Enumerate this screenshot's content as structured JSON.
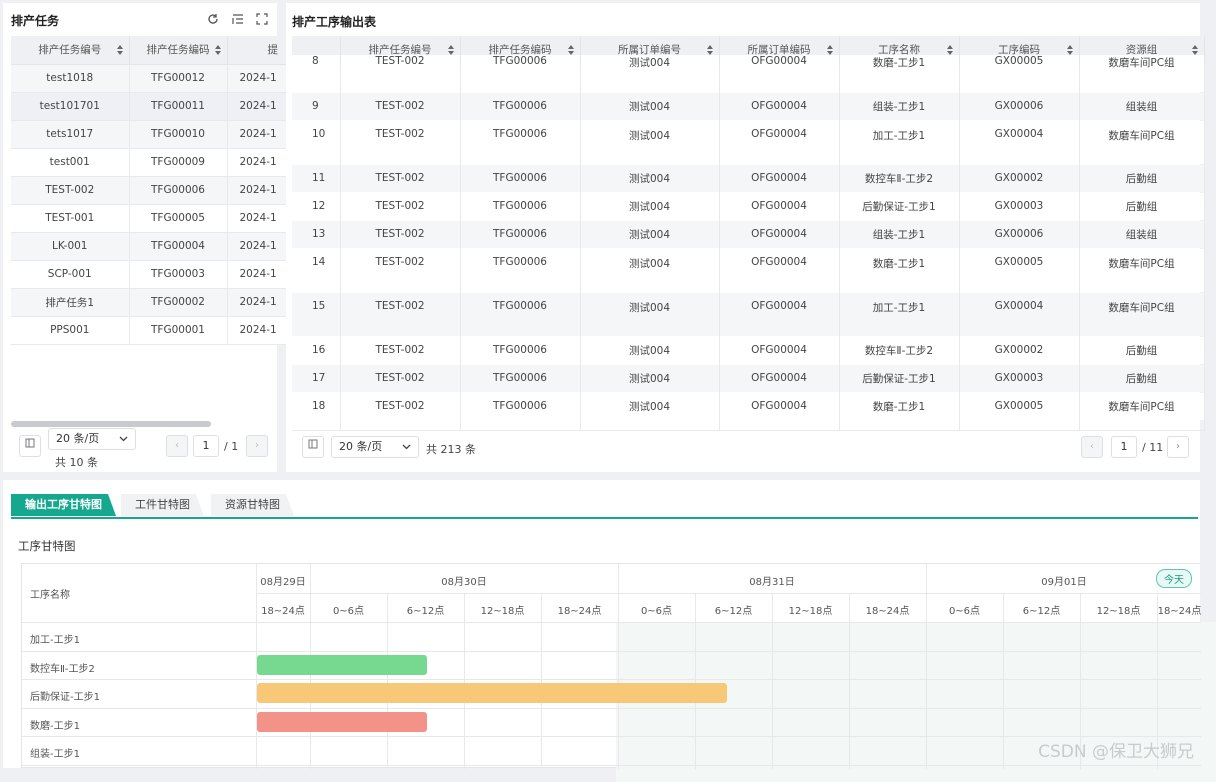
{
  "left": {
    "title": "排产任务",
    "columns": [
      "排产任务编号",
      "排产任务编码",
      "提"
    ],
    "rows": [
      [
        "test1018",
        "TFG00012",
        "2024-1"
      ],
      [
        "test101701",
        "TFG00011",
        "2024-1"
      ],
      [
        "tets1017",
        "TFG00010",
        "2024-1"
      ],
      [
        "test001",
        "TFG00009",
        "2024-1"
      ],
      [
        "TEST-002",
        "TFG00006",
        "2024-1"
      ],
      [
        "TEST-001",
        "TFG00005",
        "2024-1"
      ],
      [
        "LK-001",
        "TFG00004",
        "2024-1"
      ],
      [
        "SCP-001",
        "TFG00003",
        "2024-1"
      ],
      [
        "排产任务1",
        "TFG00002",
        "2024-1"
      ],
      [
        "PPS001",
        "TFG00001",
        "2024-1"
      ]
    ],
    "page_size": "20 条/页",
    "total": "共 10 条",
    "page": "1",
    "pages": "/ 1"
  },
  "right": {
    "title": "排产工序输出表",
    "columns": [
      "",
      "排产任务编号",
      "排产任务编码",
      "所属订单编号",
      "所属订单编码",
      "工序名称",
      "工序编码",
      "资源组"
    ],
    "rows": [
      [
        "8",
        "TEST-002",
        "TFG00006",
        "测试004",
        "OFG00004",
        "数磨-工步1",
        "GX00005",
        "数磨车间PC组"
      ],
      [
        "9",
        "TEST-002",
        "TFG00006",
        "测试004",
        "OFG00004",
        "组装-工步1",
        "GX00006",
        "组装组"
      ],
      [
        "10",
        "TEST-002",
        "TFG00006",
        "测试004",
        "OFG00004",
        "加工-工步1",
        "GX00004",
        "数磨车间PC组"
      ],
      [
        "11",
        "TEST-002",
        "TFG00006",
        "测试004",
        "OFG00004",
        "数控车Ⅱ-工步2",
        "GX00002",
        "后勤组"
      ],
      [
        "12",
        "TEST-002",
        "TFG00006",
        "测试004",
        "OFG00004",
        "后勤保证-工步1",
        "GX00003",
        "后勤组"
      ],
      [
        "13",
        "TEST-002",
        "TFG00006",
        "测试004",
        "OFG00004",
        "组装-工步1",
        "GX00006",
        "组装组"
      ],
      [
        "14",
        "TEST-002",
        "TFG00006",
        "测试004",
        "OFG00004",
        "数磨-工步1",
        "GX00005",
        "数磨车间PC组"
      ],
      [
        "15",
        "TEST-002",
        "TFG00006",
        "测试004",
        "OFG00004",
        "加工-工步1",
        "GX00004",
        "数磨车间PC组"
      ],
      [
        "16",
        "TEST-002",
        "TFG00006",
        "测试004",
        "OFG00004",
        "数控车Ⅱ-工步2",
        "GX00002",
        "后勤组"
      ],
      [
        "17",
        "TEST-002",
        "TFG00006",
        "测试004",
        "OFG00004",
        "后勤保证-工步1",
        "GX00003",
        "后勤组"
      ],
      [
        "18",
        "TEST-002",
        "TFG00006",
        "测试004",
        "OFG00004",
        "数磨-工步1",
        "GX00005",
        "数磨车间PC组"
      ]
    ],
    "page_size": "20 条/页",
    "total": "共 213 条",
    "page": "1",
    "pages": "/ 11"
  },
  "bottom": {
    "tabs": [
      "输出工序甘特图",
      "工件甘特图",
      "资源甘特图"
    ],
    "subtitle": "工序甘特图",
    "gantt": {
      "name_header": "工序名称",
      "dates": [
        "08月29日",
        "08月30日",
        "08月31日",
        "09月01日"
      ],
      "today": "今天",
      "slots": [
        "18~24点",
        "0~6点",
        "6~12点",
        "12~18点",
        "18~24点",
        "0~6点",
        "6~12点",
        "12~18点",
        "18~24点",
        "0~6点",
        "6~12点",
        "12~18点",
        "18~24点"
      ],
      "tasks": [
        "加工-工步1",
        "数控车Ⅱ-工步2",
        "后勤保证-工步1",
        "数磨-工步1",
        "组装-工步1"
      ],
      "colors": {
        "green": "#77d98f",
        "orange": "#f7c878",
        "red": "#f39387",
        "accent": "#15a88f"
      }
    },
    "watermark": "CSDN @保卫大狮兄"
  }
}
